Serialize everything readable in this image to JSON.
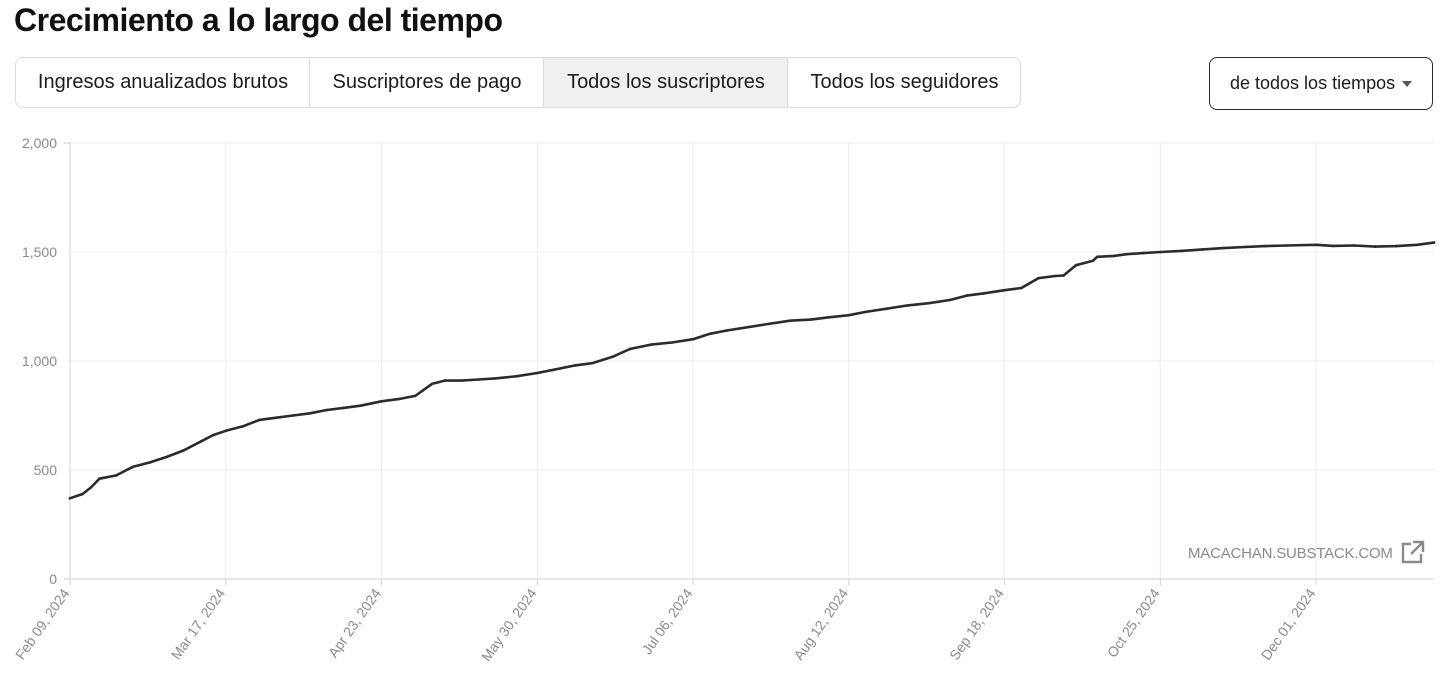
{
  "title": "Crecimiento a lo largo del tiempo",
  "tabs": [
    {
      "label": "Ingresos anualizados brutos",
      "active": false
    },
    {
      "label": "Suscriptores de pago",
      "active": false
    },
    {
      "label": "Todos los suscriptores",
      "active": true
    },
    {
      "label": "Todos los seguidores",
      "active": false
    }
  ],
  "range_select": {
    "value": "de todos los tiempos",
    "icon": "caret-down-icon"
  },
  "watermark": {
    "text": "MACACHAN.SUBSTACK.COM",
    "icon": "external-link-icon"
  },
  "colors": {
    "line": "#2b2b2b",
    "grid": "#ececec",
    "axis": "#cfcfcf",
    "tick_text": "#8a8a8a",
    "active_tab": "#f0f0f0"
  },
  "chart_data": {
    "type": "line",
    "title": "",
    "xlabel": "",
    "ylabel": "",
    "x_type": "date",
    "x_range": [
      "2024-02-09",
      "2024-12-29"
    ],
    "ylim": [
      0,
      2000
    ],
    "y_ticks": [
      0,
      500,
      1000,
      1500,
      2000
    ],
    "y_tick_labels": [
      "0",
      "500",
      "1,000",
      "1,500",
      "2,000"
    ],
    "x_ticks": [
      "2024-02-09",
      "2024-03-17",
      "2024-04-23",
      "2024-05-30",
      "2024-07-06",
      "2024-08-12",
      "2024-09-18",
      "2024-10-25",
      "2024-12-01"
    ],
    "x_tick_labels": [
      "Feb 09, 2024",
      "Mar 17, 2024",
      "Apr 23, 2024",
      "May 30, 2024",
      "Jul 06, 2024",
      "Aug 12, 2024",
      "Sep 18, 2024",
      "Oct 25, 2024",
      "Dec 01, 2024"
    ],
    "grid": true,
    "legend": "none",
    "series": [
      {
        "x": [
          "2024-02-09",
          "2024-02-12",
          "2024-02-14",
          "2024-02-16",
          "2024-02-20",
          "2024-02-24",
          "2024-02-28",
          "2024-03-03",
          "2024-03-07",
          "2024-03-11",
          "2024-03-14",
          "2024-03-17",
          "2024-03-21",
          "2024-03-25",
          "2024-03-29",
          "2024-04-02",
          "2024-04-06",
          "2024-04-10",
          "2024-04-14",
          "2024-04-18",
          "2024-04-23",
          "2024-04-27",
          "2024-05-01",
          "2024-05-05",
          "2024-05-08",
          "2024-05-12",
          "2024-05-16",
          "2024-05-20",
          "2024-05-25",
          "2024-05-30",
          "2024-06-03",
          "2024-06-08",
          "2024-06-12",
          "2024-06-17",
          "2024-06-21",
          "2024-06-26",
          "2024-07-01",
          "2024-07-06",
          "2024-07-10",
          "2024-07-14",
          "2024-07-19",
          "2024-07-24",
          "2024-07-29",
          "2024-08-03",
          "2024-08-07",
          "2024-08-12",
          "2024-08-16",
          "2024-08-21",
          "2024-08-26",
          "2024-08-31",
          "2024-09-05",
          "2024-09-09",
          "2024-09-13",
          "2024-09-18",
          "2024-09-22",
          "2024-09-26",
          "2024-09-30",
          "2024-10-02",
          "2024-10-05",
          "2024-10-09",
          "2024-10-10",
          "2024-10-14",
          "2024-10-17",
          "2024-10-21",
          "2024-10-25",
          "2024-10-30",
          "2024-11-04",
          "2024-11-09",
          "2024-11-14",
          "2024-11-19",
          "2024-11-24",
          "2024-12-01",
          "2024-12-05",
          "2024-12-10",
          "2024-12-15",
          "2024-12-20",
          "2024-12-25",
          "2024-12-29"
        ],
        "values": [
          370,
          390,
          420,
          460,
          475,
          515,
          535,
          560,
          590,
          630,
          660,
          680,
          700,
          730,
          740,
          750,
          760,
          775,
          785,
          795,
          815,
          825,
          840,
          895,
          910,
          910,
          915,
          920,
          930,
          945,
          960,
          980,
          990,
          1020,
          1055,
          1075,
          1085,
          1100,
          1125,
          1140,
          1155,
          1170,
          1185,
          1190,
          1200,
          1210,
          1225,
          1240,
          1255,
          1265,
          1280,
          1300,
          1310,
          1325,
          1335,
          1380,
          1390,
          1392,
          1440,
          1460,
          1478,
          1482,
          1490,
          1495,
          1500,
          1505,
          1512,
          1518,
          1523,
          1527,
          1530,
          1533,
          1528,
          1530,
          1525,
          1527,
          1533,
          1543
        ]
      }
    ]
  }
}
